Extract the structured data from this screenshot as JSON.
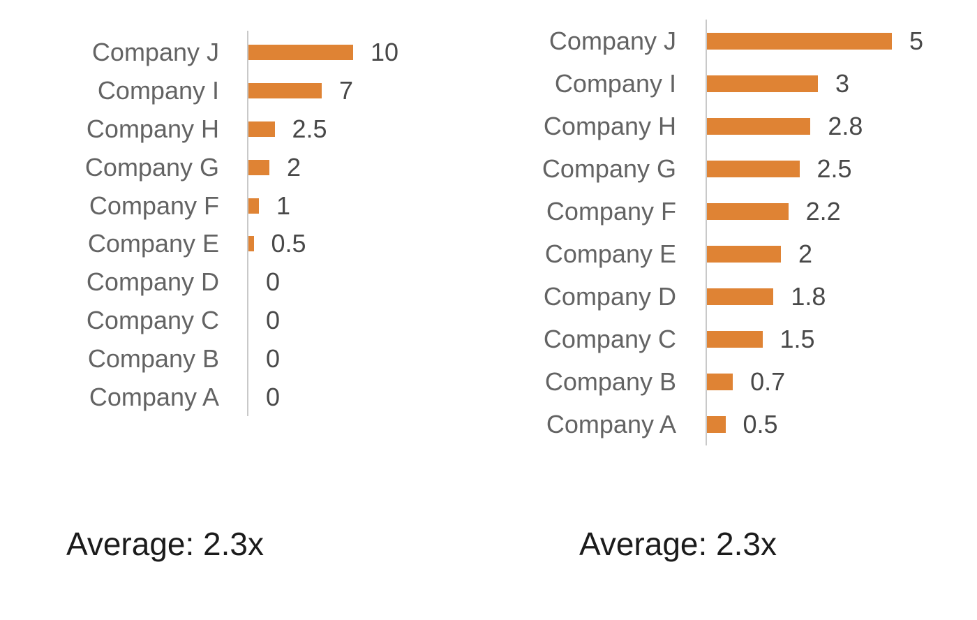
{
  "chart_data": [
    {
      "type": "bar",
      "orientation": "horizontal",
      "title": "",
      "xlabel": "",
      "ylabel": "",
      "legend": "none",
      "grid": false,
      "value_axis_visible": false,
      "categories": [
        "Company J",
        "Company I",
        "Company H",
        "Company G",
        "Company F",
        "Company E",
        "Company D",
        "Company C",
        "Company B",
        "Company A"
      ],
      "values": [
        10,
        7,
        2.5,
        2,
        1,
        0.5,
        0,
        0,
        0,
        0
      ],
      "value_labels": [
        "10",
        "7",
        "2.5",
        "2",
        "1",
        "0.5",
        "0",
        "0",
        "0",
        "0"
      ],
      "annotation": "Average: 2.3x",
      "bar_color": "#df8334",
      "axis_color": "#c9c9c9"
    },
    {
      "type": "bar",
      "orientation": "horizontal",
      "title": "",
      "xlabel": "",
      "ylabel": "",
      "legend": "none",
      "grid": false,
      "value_axis_visible": false,
      "categories": [
        "Company J",
        "Company I",
        "Company H",
        "Company G",
        "Company F",
        "Company E",
        "Company D",
        "Company C",
        "Company B",
        "Company A"
      ],
      "values": [
        5,
        3,
        2.8,
        2.5,
        2.2,
        2,
        1.8,
        1.5,
        0.7,
        0.5
      ],
      "value_labels": [
        "5",
        "3",
        "2.8",
        "2.5",
        "2.2",
        "2",
        "1.8",
        "1.5",
        "0.7",
        "0.5"
      ],
      "annotation": "Average: 2.3x",
      "bar_color": "#df8334",
      "axis_color": "#c9c9c9"
    }
  ]
}
